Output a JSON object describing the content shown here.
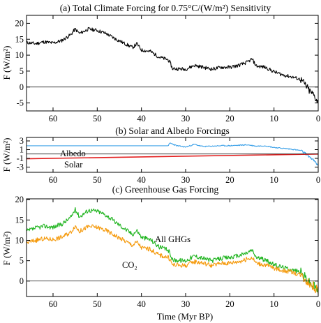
{
  "chart_data": [
    {
      "type": "line",
      "title": "(a) Total Climate Forcing for 0.75°C/(W/m²) Sensitivity",
      "xlabel": "",
      "ylabel": "F (W/m²)",
      "xlim": [
        66,
        0
      ],
      "ylim": [
        -7.5,
        22.5
      ],
      "xticks": [
        60,
        50,
        40,
        30,
        20,
        10,
        0
      ],
      "xtick_labels": [
        "60",
        "50",
        "40",
        "30",
        "20",
        "10",
        "0"
      ],
      "yticks": [
        -5,
        0,
        5,
        10,
        15,
        20
      ],
      "ytick_labels": [
        "-5",
        "0",
        "5",
        "10",
        "15",
        "20"
      ],
      "zero_line": true,
      "series": [
        {
          "name": "",
          "color": "#000000",
          "x": [
            66,
            64,
            62,
            60,
            58,
            56,
            55,
            54,
            52,
            50,
            48,
            46,
            44,
            42,
            41,
            40,
            38,
            36,
            34,
            33.5,
            33,
            30,
            28,
            26,
            24,
            22,
            20,
            18,
            16,
            15,
            14,
            12,
            10,
            8,
            6,
            4,
            3,
            2,
            1,
            0
          ],
          "y": [
            14,
            13.6,
            14.2,
            13.8,
            14.6,
            16.4,
            18.2,
            16.8,
            18.2,
            17.8,
            16.8,
            15.2,
            13.8,
            12.4,
            13.6,
            11.6,
            11.2,
            9.4,
            8.6,
            7.6,
            5.8,
            5.6,
            6.8,
            6.2,
            5.6,
            6.2,
            6.2,
            6.8,
            7.8,
            8.8,
            6.6,
            6.2,
            4.8,
            3.8,
            3.2,
            2.4,
            0.8,
            -1.2,
            -2.6,
            -4.8
          ]
        }
      ]
    },
    {
      "type": "line",
      "title": "(b) Solar and Albedo Forcings",
      "xlabel": "",
      "ylabel": "F (W/m²)",
      "xlim": [
        66,
        0
      ],
      "ylim": [
        -4.2,
        3.8
      ],
      "xticks": [
        60,
        50,
        40,
        30,
        20,
        10,
        0
      ],
      "xtick_labels": [
        "60",
        "50",
        "40",
        "30",
        "20",
        "10",
        "0"
      ],
      "yticks": [
        -3,
        -1,
        1,
        3
      ],
      "ytick_labels": [
        "-3",
        "-1",
        "1",
        "3"
      ],
      "zero_line": true,
      "annotations": [
        "Albedo",
        "Solar"
      ],
      "series": [
        {
          "name": "Albedo",
          "color": "#3aa0e8",
          "x": [
            66,
            34,
            33.5,
            32,
            30,
            28,
            26,
            24,
            22,
            20,
            18,
            16,
            14,
            12,
            10,
            8,
            6,
            4,
            3,
            2,
            1,
            0
          ],
          "y": [
            1.9,
            1.9,
            2.5,
            1.9,
            1.6,
            2.2,
            1.7,
            1.8,
            1.9,
            1.9,
            2.0,
            2.1,
            1.8,
            1.9,
            1.5,
            1.3,
            1.1,
            0.8,
            0.2,
            -0.6,
            -1.5,
            -2.7
          ]
        },
        {
          "name": "Solar",
          "color": "#e32020",
          "x": [
            66,
            0
          ],
          "y": [
            -1.1,
            0
          ]
        }
      ]
    },
    {
      "type": "line",
      "title": "(c) Greenhouse Gas Forcing",
      "xlabel": "Time (Myr BP)",
      "ylabel": "F (W/m²)",
      "xlim": [
        66,
        0
      ],
      "ylim": [
        -3.8,
        20.2
      ],
      "xticks": [
        60,
        50,
        40,
        30,
        20,
        10,
        0
      ],
      "xtick_labels": [
        "60",
        "50",
        "40",
        "30",
        "20",
        "10",
        "0"
      ],
      "yticks": [
        0,
        5,
        10,
        15,
        20
      ],
      "ytick_labels": [
        "0",
        "5",
        "10",
        "15",
        "20"
      ],
      "zero_line": true,
      "annotations": [
        "All GHGs",
        "CO₂"
      ],
      "series": [
        {
          "name": "All GHGs",
          "color": "#22b522",
          "x": [
            66,
            64,
            62,
            60,
            58,
            56,
            55,
            54,
            52,
            50,
            48,
            46,
            44,
            42,
            41,
            40,
            38,
            36,
            34,
            33.5,
            33,
            30,
            28,
            26,
            24,
            22,
            20,
            18,
            16,
            15,
            14,
            12,
            10,
            8,
            6,
            4,
            3,
            2,
            1,
            0
          ],
          "y": [
            12.2,
            13,
            13.5,
            13.2,
            14,
            15.6,
            17.6,
            15.8,
            17.4,
            17.2,
            16.2,
            14.6,
            13,
            11.5,
            12.4,
            10.8,
            10.2,
            8.4,
            7.6,
            6.8,
            5.2,
            5,
            6.2,
            5.6,
            5,
            5.6,
            5.8,
            6.2,
            7,
            7.6,
            5.8,
            5.2,
            4,
            3.4,
            2.8,
            2.2,
            1,
            -0.4,
            -1.2,
            -2.4
          ]
        },
        {
          "name": "CO₂",
          "color": "#f59a0c",
          "x": [
            66,
            64,
            62,
            60,
            58,
            56,
            55,
            54,
            52,
            50,
            48,
            46,
            44,
            42,
            41,
            40,
            38,
            36,
            34,
            33.5,
            33,
            30,
            28,
            26,
            24,
            22,
            20,
            18,
            16,
            15,
            14,
            12,
            10,
            8,
            6,
            4,
            3,
            2,
            1,
            0
          ],
          "y": [
            9.4,
            10,
            10.4,
            10.2,
            10.8,
            12,
            13.6,
            12.2,
            13.4,
            13.2,
            12.4,
            11.2,
            10,
            8.8,
            9.6,
            8.2,
            7.8,
            6.4,
            5.8,
            5.2,
            4,
            3.8,
            4.8,
            4.4,
            3.8,
            4.4,
            4.4,
            4.8,
            5.4,
            5.8,
            4.4,
            4,
            3.2,
            2.6,
            2.2,
            1.6,
            0.6,
            -0.6,
            -1.4,
            -2.4
          ]
        }
      ]
    }
  ]
}
